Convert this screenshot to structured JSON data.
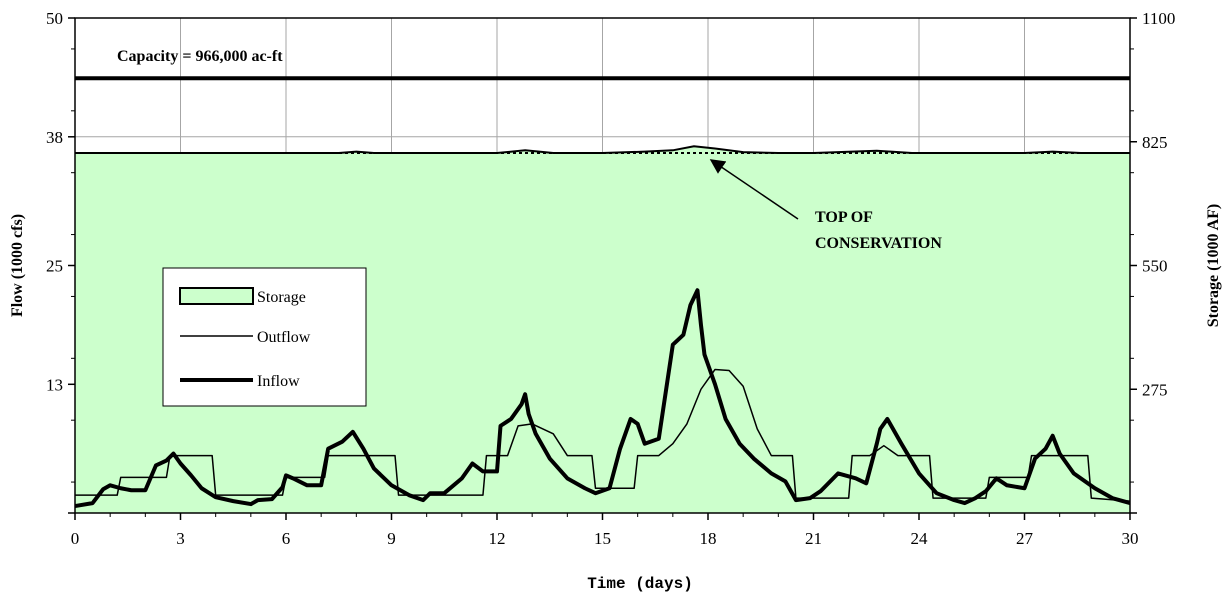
{
  "chart_data": {
    "type": "area",
    "xlabel": "Time (days)",
    "ylabel_left": "Flow (1000 cfs)",
    "ylabel_right": "Storage (1000 AF)",
    "xlim": [
      0,
      30
    ],
    "x_ticks": [
      0,
      3,
      6,
      9,
      12,
      15,
      18,
      21,
      24,
      27,
      30
    ],
    "ylim_left": [
      0,
      50
    ],
    "y_ticks_left": [
      0,
      13,
      25,
      38,
      50
    ],
    "y_tick_labels_left": [
      "",
      "13",
      "25",
      "38",
      "50"
    ],
    "ylim_right": [
      0,
      1100
    ],
    "y_ticks_right": [
      0,
      275,
      550,
      825,
      1100
    ],
    "y_tick_labels_right": [
      "",
      "275",
      "550",
      "825",
      "1100"
    ],
    "grid": true,
    "legend_position": "center-left",
    "capacity": {
      "value": 966,
      "label": "Capacity = 966,000 ac-ft"
    },
    "top_of_conservation": {
      "value": 800,
      "label_lines": [
        "TOP OF",
        "CONSERVATION"
      ]
    },
    "series": [
      {
        "name": "Storage",
        "axis": "right",
        "style": "area",
        "fill": "#ccffcc",
        "x": [
          0,
          2,
          3,
          4,
          6,
          7.5,
          8,
          8.5,
          10,
          12,
          12.8,
          13.6,
          15,
          16.2,
          17,
          17.6,
          18.2,
          19,
          20,
          21,
          22.8,
          23.8,
          25,
          27,
          27.8,
          28.6,
          30
        ],
        "y": [
          800,
          800,
          800,
          800,
          800,
          800,
          803,
          800,
          800,
          800,
          806,
          800,
          800,
          803,
          806,
          815,
          810,
          802,
          800,
          800,
          805,
          800,
          800,
          800,
          803,
          800,
          800
        ]
      },
      {
        "name": "Outflow",
        "axis": "left",
        "style": "line",
        "x": [
          0,
          1.2,
          1.3,
          2.6,
          2.7,
          3.9,
          4.0,
          5.9,
          6.0,
          7.1,
          7.2,
          9.1,
          9.2,
          11.6,
          11.7,
          12.3,
          12.6,
          13.0,
          13.6,
          14.0,
          14.7,
          14.8,
          15.9,
          16.0,
          16.6,
          17.0,
          17.4,
          17.8,
          18.2,
          18.6,
          19.0,
          19.4,
          19.8,
          20.0,
          20.4,
          20.5,
          22.0,
          22.1,
          22.6,
          23.0,
          23.4,
          24.3,
          24.4,
          25.9,
          26.0,
          27.1,
          27.2,
          28.8,
          28.9,
          30
        ],
        "y": [
          1.8,
          1.8,
          3.6,
          3.6,
          5.8,
          5.8,
          1.8,
          1.8,
          3.6,
          3.6,
          5.8,
          5.8,
          1.8,
          1.8,
          5.8,
          5.8,
          8.8,
          9.0,
          8.0,
          5.8,
          5.8,
          2.5,
          2.5,
          5.8,
          5.8,
          7.0,
          9.0,
          12.5,
          14.5,
          14.4,
          12.8,
          8.5,
          5.8,
          5.8,
          5.8,
          1.5,
          1.5,
          5.8,
          5.8,
          6.8,
          5.8,
          5.8,
          1.5,
          1.5,
          3.6,
          3.6,
          5.8,
          5.8,
          1.5,
          1.2
        ]
      },
      {
        "name": "Inflow",
        "axis": "left",
        "style": "thick-line",
        "x": [
          0,
          0.5,
          0.8,
          1.0,
          1.3,
          1.6,
          2.0,
          2.3,
          2.6,
          2.8,
          3.0,
          3.3,
          3.6,
          4.0,
          4.5,
          5.0,
          5.2,
          5.6,
          5.9,
          6.0,
          6.2,
          6.6,
          7.0,
          7.2,
          7.6,
          7.9,
          8.2,
          8.5,
          9.0,
          9.5,
          9.9,
          10.1,
          10.5,
          11.0,
          11.3,
          11.6,
          12.0,
          12.1,
          12.4,
          12.7,
          12.8,
          12.9,
          13.1,
          13.5,
          14.0,
          14.5,
          14.8,
          15.2,
          15.5,
          15.8,
          16.0,
          16.2,
          16.6,
          17.0,
          17.3,
          17.5,
          17.7,
          17.8,
          17.9,
          18.0,
          18.2,
          18.5,
          18.9,
          19.3,
          19.8,
          20.2,
          20.5,
          20.9,
          21.2,
          21.7,
          22.2,
          22.5,
          22.8,
          22.9,
          23.1,
          23.5,
          24.0,
          24.5,
          25.0,
          25.3,
          25.6,
          25.9,
          26.2,
          26.5,
          27.0,
          27.3,
          27.6,
          27.8,
          28.0,
          28.4,
          29.0,
          29.5,
          30.0
        ],
        "y": [
          0.7,
          1.0,
          2.4,
          2.8,
          2.5,
          2.3,
          2.3,
          4.8,
          5.3,
          6.0,
          5.0,
          3.8,
          2.5,
          1.6,
          1.2,
          0.9,
          1.3,
          1.4,
          2.6,
          3.8,
          3.5,
          2.8,
          2.8,
          6.5,
          7.2,
          8.2,
          6.5,
          4.5,
          2.8,
          1.8,
          1.3,
          2.0,
          2.0,
          3.5,
          5.0,
          4.2,
          4.2,
          8.8,
          9.5,
          11.0,
          12.0,
          10.0,
          8.0,
          5.5,
          3.5,
          2.5,
          2.0,
          2.5,
          6.5,
          9.5,
          9.0,
          7.0,
          7.5,
          17.0,
          18.0,
          21.0,
          22.5,
          19.0,
          16.0,
          15.0,
          13.0,
          9.5,
          7.0,
          5.5,
          4.0,
          3.2,
          1.3,
          1.5,
          2.2,
          4.0,
          3.5,
          3.0,
          7.0,
          8.5,
          9.5,
          7.0,
          4.0,
          2.0,
          1.3,
          1.0,
          1.5,
          2.2,
          3.5,
          2.8,
          2.5,
          5.5,
          6.5,
          7.8,
          6.0,
          4.0,
          2.5,
          1.5,
          1.0
        ]
      }
    ]
  }
}
